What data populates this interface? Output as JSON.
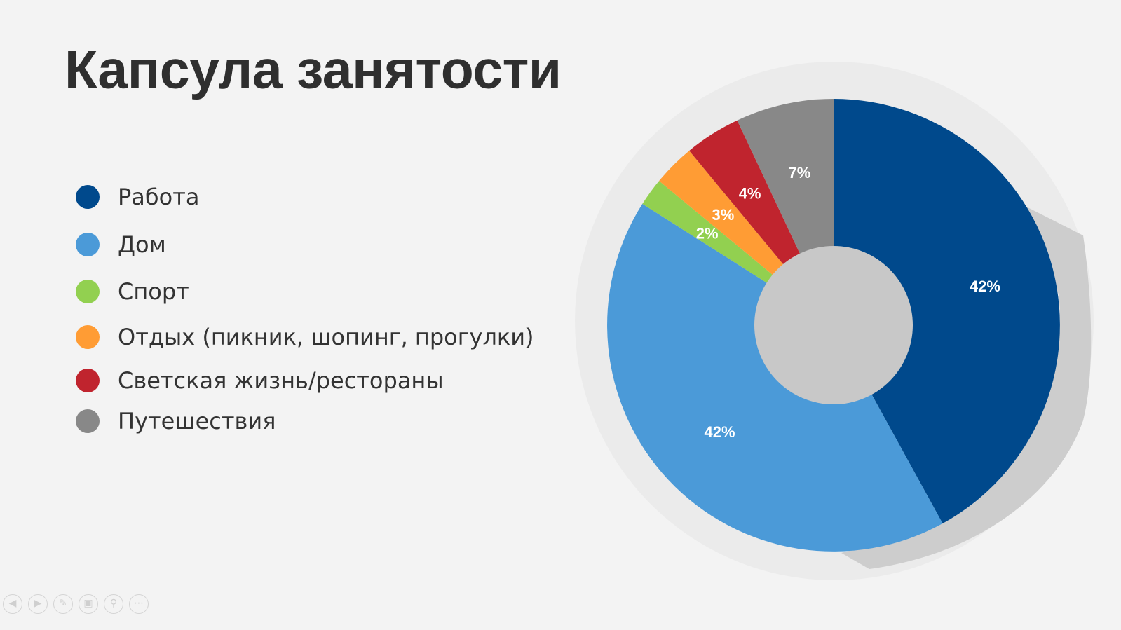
{
  "chart_data": {
    "type": "pie",
    "title": "Капсула занятости",
    "categories": [
      "Работа",
      "Дом",
      "Спорт",
      "Отдых (пикник, шопинг, прогулки)",
      "Светская жизнь/рестораны",
      "Путешествия"
    ],
    "values": [
      42,
      42,
      2,
      3,
      4,
      7
    ],
    "data_labels": [
      "42%",
      "42%",
      "2%",
      "3%",
      "4%",
      "7%"
    ],
    "colors": [
      "#00498c",
      "#4b9ad8",
      "#92d050",
      "#ff9c34",
      "#c0242e",
      "#888888"
    ],
    "hole_color": "#c8c8c8",
    "legend_position": "left",
    "donut": true
  },
  "toolbar": {
    "icons": [
      "prev-icon",
      "next-icon",
      "pen-icon",
      "slides-icon",
      "zoom-icon",
      "more-icon"
    ]
  }
}
